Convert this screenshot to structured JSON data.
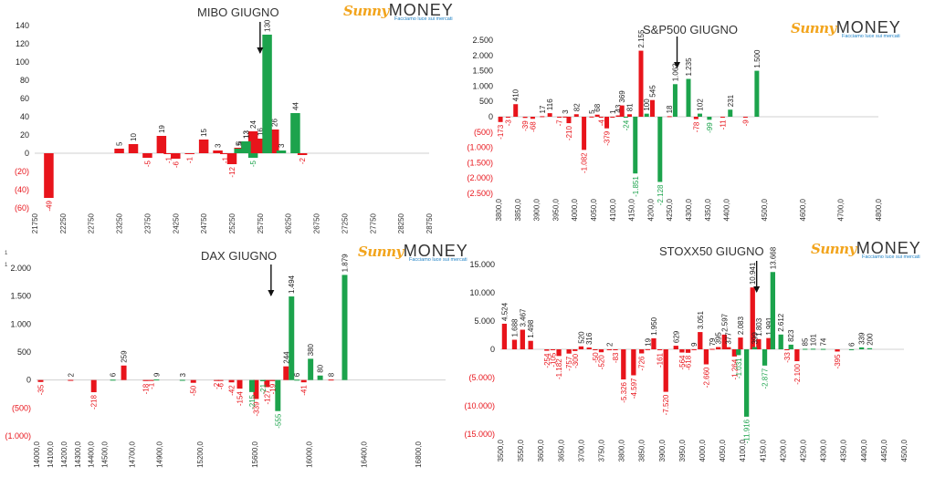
{
  "logo": {
    "word1": "Sunny",
    "word2": "MONEY",
    "tagline": "Facciamo luce sui mercati"
  },
  "stray_marks": [
    "1",
    "1"
  ],
  "charts": [
    {
      "type": "bar",
      "title": "MIBO GIUGNO",
      "xlabel": "",
      "ylabel": "",
      "ylim": [
        -60,
        140
      ],
      "yticks": [
        140,
        120,
        100,
        80,
        60,
        40,
        20,
        0,
        -20,
        -40,
        -60
      ],
      "ytick_labels": [
        "140",
        "120",
        "100",
        "80",
        "60",
        "40",
        "20",
        "0",
        "(20)",
        "(40)",
        "(60)"
      ],
      "xlim": [
        21750,
        28750
      ],
      "xticks": [
        21750,
        22250,
        22750,
        23250,
        23750,
        24250,
        24750,
        25250,
        25750,
        26250,
        26750,
        27250,
        27750,
        28250,
        28750
      ],
      "xtick_labels": [
        "21750",
        "22250",
        "22750",
        "23250",
        "23750",
        "24250",
        "24750",
        "25250",
        "25750",
        "26250",
        "26750",
        "27250",
        "27750",
        "28250",
        "28750"
      ],
      "bar_width": 170,
      "colors": {
        "positive": "#e8141b",
        "negative": "#1ca34c"
      },
      "arrow_at": 25750,
      "red_series": [
        {
          "x": 22000,
          "value": -49,
          "label": "-49"
        },
        {
          "x": 23250,
          "value": 5,
          "label": "5"
        },
        {
          "x": 23500,
          "value": 10,
          "label": "10"
        },
        {
          "x": 23750,
          "value": -5,
          "label": "-5"
        },
        {
          "x": 24000,
          "value": 19,
          "label": "19"
        },
        {
          "x": 24125,
          "value": -1,
          "label": "-1"
        },
        {
          "x": 24250,
          "value": -6,
          "label": "-6"
        },
        {
          "x": 24500,
          "value": -1,
          "label": "-1"
        },
        {
          "x": 24750,
          "value": 15,
          "label": "15"
        },
        {
          "x": 25000,
          "value": 3,
          "label": "3"
        },
        {
          "x": 25125,
          "value": -1,
          "label": "-1"
        },
        {
          "x": 25250,
          "value": -12,
          "label": "-12"
        },
        {
          "x": 25375,
          "value": 6,
          "label": "6"
        },
        {
          "x": 25500,
          "value": 13,
          "label": "13"
        },
        {
          "x": 25625,
          "value": 24,
          "label": "24"
        },
        {
          "x": 25750,
          "value": 16,
          "label": "16"
        },
        {
          "x": 26000,
          "value": 26,
          "label": "26"
        },
        {
          "x": 26500,
          "value": -2,
          "label": "-2"
        }
      ],
      "green_series": [
        {
          "x": 25375,
          "value": 5,
          "label": "5"
        },
        {
          "x": 25500,
          "value": 13,
          "label": "13"
        },
        {
          "x": 25625,
          "value": -5,
          "label": "-5"
        },
        {
          "x": 25875,
          "value": 130,
          "label": "130"
        },
        {
          "x": 26125,
          "value": 3,
          "label": "3"
        },
        {
          "x": 26375,
          "value": 44,
          "label": "44"
        }
      ]
    },
    {
      "type": "bar",
      "title": "S&P500 GIUGNO",
      "xlabel": "",
      "ylabel": "",
      "ylim": [
        -2500,
        2500
      ],
      "yticks": [
        2500,
        2000,
        1500,
        1000,
        500,
        0,
        -500,
        -1000,
        -1500,
        -2000,
        -2500
      ],
      "ytick_labels": [
        "2.500",
        "2.000",
        "1.500",
        "1.000",
        "500",
        "0",
        "(500)",
        "(1.000)",
        "(1.500)",
        "(2.000)",
        "(2.500)"
      ],
      "xlim": [
        3800,
        4800
      ],
      "xticks": [
        3800,
        3850,
        3900,
        3950,
        4000,
        4050,
        4100,
        4150,
        4200,
        4250,
        4300,
        4350,
        4400,
        4500,
        4600,
        4700,
        4800
      ],
      "xtick_labels": [
        "3800,0",
        "3850,0",
        "3900,0",
        "3950,0",
        "4000,0",
        "4050,0",
        "4100,0",
        "4150,0",
        "4200,0",
        "4250,0",
        "4300,0",
        "4350,0",
        "4400,0",
        "4500,0",
        "4600,0",
        "4700,0",
        "4800,0"
      ],
      "bar_width": 12,
      "colors": {
        "positive": "#e8141b",
        "negative": "#1ca34c"
      },
      "arrow_at": 4270,
      "red_series": [
        {
          "x": 3805,
          "value": -173,
          "label": "-173"
        },
        {
          "x": 3825,
          "value": -3,
          "label": "-3"
        },
        {
          "x": 3845,
          "value": 410,
          "label": "410"
        },
        {
          "x": 3870,
          "value": -39,
          "label": "-39"
        },
        {
          "x": 3890,
          "value": -68,
          "label": "-68"
        },
        {
          "x": 3915,
          "value": 17,
          "label": "17"
        },
        {
          "x": 3935,
          "value": 116,
          "label": "116"
        },
        {
          "x": 3960,
          "value": -7,
          "label": "-7"
        },
        {
          "x": 3975,
          "value": 3,
          "label": "3"
        },
        {
          "x": 3985,
          "value": -210,
          "label": "-210"
        },
        {
          "x": 4005,
          "value": 82,
          "label": "82"
        },
        {
          "x": 4025,
          "value": -1082,
          "label": "-1.082"
        },
        {
          "x": 4045,
          "value": 5,
          "label": "5"
        },
        {
          "x": 4060,
          "value": 68,
          "label": "68"
        },
        {
          "x": 4070,
          "value": -4,
          "label": "-4"
        },
        {
          "x": 4085,
          "value": -379,
          "label": "-379"
        },
        {
          "x": 4100,
          "value": 1,
          "label": "1"
        },
        {
          "x": 4115,
          "value": 43,
          "label": "43"
        },
        {
          "x": 4125,
          "value": 369,
          "label": "369"
        },
        {
          "x": 4145,
          "value": 81,
          "label": "81"
        },
        {
          "x": 4175,
          "value": 2155,
          "label": "2.155"
        },
        {
          "x": 4205,
          "value": 545,
          "label": "545"
        },
        {
          "x": 4250,
          "value": 18,
          "label": "18"
        },
        {
          "x": 4320,
          "value": -78,
          "label": "-78"
        },
        {
          "x": 4390,
          "value": -11,
          "label": "-11"
        },
        {
          "x": 4450,
          "value": -9,
          "label": "-9"
        }
      ],
      "green_series": [
        {
          "x": 4135,
          "value": -24,
          "label": "-24"
        },
        {
          "x": 4160,
          "value": -1851,
          "label": "-1.851"
        },
        {
          "x": 4190,
          "value": 100,
          "label": "100"
        },
        {
          "x": 4225,
          "value": -2128,
          "label": "-2.128"
        },
        {
          "x": 4265,
          "value": 1063,
          "label": "1.063"
        },
        {
          "x": 4300,
          "value": 1235,
          "label": "1.235"
        },
        {
          "x": 4330,
          "value": 102,
          "label": "102"
        },
        {
          "x": 4355,
          "value": -99,
          "label": "-99"
        },
        {
          "x": 4410,
          "value": 231,
          "label": "231"
        },
        {
          "x": 4480,
          "value": 1500,
          "label": "1.500"
        }
      ]
    },
    {
      "type": "bar",
      "title": "DAX GIUGNO",
      "xlabel": "",
      "ylabel": "",
      "ylim": [
        -1000,
        2000
      ],
      "yticks": [
        2000,
        1500,
        1000,
        500,
        0,
        -500,
        -1000
      ],
      "ytick_labels": [
        "2.000",
        "1.500",
        "1.000",
        "500",
        "0",
        "(500)",
        "(1.000)"
      ],
      "xlim": [
        14000,
        17000
      ],
      "xticks": [
        14000,
        14100,
        14200,
        14300,
        14400,
        14500,
        14700,
        14900,
        15200,
        15600,
        16000,
        16400,
        16800
      ],
      "xtick_labels": [
        "14000,0",
        "14100,0",
        "14200,0",
        "14300,0",
        "14400,0",
        "14500,0",
        "14700,0",
        "14900,0",
        "15200,0",
        "15600,0",
        "16000,0",
        "16400,0",
        "16800,0"
      ],
      "bar_width": 40,
      "colors": {
        "positive": "#e8141b",
        "negative": "#1ca34c"
      },
      "arrow_at": 15720,
      "red_series": [
        {
          "x": 14030,
          "value": -35,
          "label": "-35"
        },
        {
          "x": 14250,
          "value": 2,
          "label": "2"
        },
        {
          "x": 14420,
          "value": -218,
          "label": "-218"
        },
        {
          "x": 14640,
          "value": 259,
          "label": "259"
        },
        {
          "x": 14800,
          "value": -18,
          "label": "-18"
        },
        {
          "x": 14840,
          "value": -1,
          "label": "-1"
        },
        {
          "x": 15150,
          "value": -50,
          "label": "-50"
        },
        {
          "x": 15320,
          "value": -2,
          "label": "-2"
        },
        {
          "x": 15350,
          "value": -6,
          "label": "-6"
        },
        {
          "x": 15430,
          "value": -42,
          "label": "-42"
        },
        {
          "x": 15490,
          "value": -154,
          "label": "-154"
        },
        {
          "x": 15610,
          "value": -339,
          "label": "-339"
        },
        {
          "x": 15690,
          "value": -127,
          "label": "-127"
        },
        {
          "x": 15730,
          "value": -19,
          "label": "-19"
        },
        {
          "x": 15830,
          "value": 244,
          "label": "244"
        },
        {
          "x": 15960,
          "value": -41,
          "label": "-41"
        },
        {
          "x": 16160,
          "value": 8,
          "label": "8"
        }
      ],
      "green_series": [
        {
          "x": 14560,
          "value": 6,
          "label": "6"
        },
        {
          "x": 14880,
          "value": 9,
          "label": "9"
        },
        {
          "x": 15070,
          "value": 3,
          "label": "3"
        },
        {
          "x": 15580,
          "value": -215,
          "label": "-215"
        },
        {
          "x": 15660,
          "value": -21,
          "label": "-21"
        },
        {
          "x": 15770,
          "value": -555,
          "label": "-555"
        },
        {
          "x": 15870,
          "value": 1494,
          "label": "1.494"
        },
        {
          "x": 15910,
          "value": 6,
          "label": "6"
        },
        {
          "x": 16010,
          "value": 380,
          "label": "380"
        },
        {
          "x": 16080,
          "value": 80,
          "label": "80"
        },
        {
          "x": 16260,
          "value": 1879,
          "label": "1.879"
        }
      ]
    },
    {
      "type": "bar",
      "title": "STOXX50 GIUGNO",
      "xlabel": "",
      "ylabel": "",
      "ylim": [
        -15000,
        15000
      ],
      "yticks": [
        15000,
        10000,
        5000,
        0,
        -5000,
        -10000,
        -15000
      ],
      "ytick_labels": [
        "15.000",
        "10.000",
        "5.000",
        "0",
        "(5.000)",
        "(10.000)",
        "(15.000)"
      ],
      "xlim": [
        3500,
        4500
      ],
      "xticks": [
        3500,
        3550,
        3600,
        3650,
        3700,
        3750,
        3800,
        3850,
        3900,
        3950,
        4000,
        4050,
        4100,
        4150,
        4200,
        4250,
        4300,
        4350,
        4400,
        4450,
        4500
      ],
      "xtick_labels": [
        "3500,0",
        "3550,0",
        "3600,0",
        "3650,0",
        "3700,0",
        "3750,0",
        "3800,0",
        "3850,0",
        "3900,0",
        "3950,0",
        "4000,0",
        "4050,0",
        "4100,0",
        "4150,0",
        "4200,0",
        "4250,0",
        "4300,0",
        "4350,0",
        "4400,0",
        "4450,0",
        "4500,0"
      ],
      "bar_width": 12,
      "colors": {
        "positive": "#e8141b",
        "negative": "#1ca34c"
      },
      "arrow_at": 4135,
      "red_series": [
        {
          "x": 3510,
          "value": 4524,
          "label": "4.524"
        },
        {
          "x": 3535,
          "value": 1688,
          "label": "1.688"
        },
        {
          "x": 3555,
          "value": 3467,
          "label": "3.467"
        },
        {
          "x": 3575,
          "value": 1498,
          "label": "1.498"
        },
        {
          "x": 3615,
          "value": -254,
          "label": "-254"
        },
        {
          "x": 3630,
          "value": -105,
          "label": "-105"
        },
        {
          "x": 3645,
          "value": -1182,
          "label": "-1.182"
        },
        {
          "x": 3670,
          "value": -757,
          "label": "-757"
        },
        {
          "x": 3685,
          "value": -300,
          "label": "-300"
        },
        {
          "x": 3700,
          "value": 520,
          "label": "520"
        },
        {
          "x": 3720,
          "value": 316,
          "label": "316"
        },
        {
          "x": 3735,
          "value": -50,
          "label": "-50"
        },
        {
          "x": 3750,
          "value": -520,
          "label": "-520"
        },
        {
          "x": 3770,
          "value": 2,
          "label": "2"
        },
        {
          "x": 3785,
          "value": -83,
          "label": "-83"
        },
        {
          "x": 3805,
          "value": -5326,
          "label": "-5.326"
        },
        {
          "x": 3830,
          "value": -4597,
          "label": "-4.597"
        },
        {
          "x": 3850,
          "value": -726,
          "label": "-726"
        },
        {
          "x": 3865,
          "value": 19,
          "label": "19"
        },
        {
          "x": 3880,
          "value": 1950,
          "label": "1.950"
        },
        {
          "x": 3895,
          "value": -161,
          "label": "-161"
        },
        {
          "x": 3910,
          "value": -7520,
          "label": "-7.520"
        },
        {
          "x": 3935,
          "value": 629,
          "label": "629"
        },
        {
          "x": 3950,
          "value": -564,
          "label": "-564"
        },
        {
          "x": 3965,
          "value": -618,
          "label": "-618"
        },
        {
          "x": 3980,
          "value": 9,
          "label": "9"
        },
        {
          "x": 3995,
          "value": 3051,
          "label": "3.051"
        },
        {
          "x": 4010,
          "value": -2660,
          "label": "-2.660"
        },
        {
          "x": 4025,
          "value": 79,
          "label": "79"
        },
        {
          "x": 4040,
          "value": 395,
          "label": "395"
        },
        {
          "x": 4055,
          "value": 2597,
          "label": "2.597"
        },
        {
          "x": 4065,
          "value": 377,
          "label": "377"
        },
        {
          "x": 4080,
          "value": -1264,
          "label": "-1.264"
        },
        {
          "x": 4095,
          "value": 2083,
          "label": "2.083"
        },
        {
          "x": 4125,
          "value": 10941,
          "label": "10.941"
        },
        {
          "x": 4140,
          "value": 1803,
          "label": "1.803"
        },
        {
          "x": 4165,
          "value": 1991,
          "label": "1.991"
        },
        {
          "x": 4210,
          "value": -33,
          "label": "-33"
        },
        {
          "x": 4235,
          "value": -2100,
          "label": "-2.100"
        },
        {
          "x": 4335,
          "value": -395,
          "label": "-395"
        }
      ],
      "green_series": [
        {
          "x": 4090,
          "value": -1031,
          "label": "-1.031"
        },
        {
          "x": 4110,
          "value": -11916,
          "label": "-11.916"
        },
        {
          "x": 4130,
          "value": 399,
          "label": "399"
        },
        {
          "x": 4155,
          "value": -2877,
          "label": "-2.877"
        },
        {
          "x": 4175,
          "value": 13668,
          "label": "13.668"
        },
        {
          "x": 4195,
          "value": 2612,
          "label": "2.612"
        },
        {
          "x": 4220,
          "value": 823,
          "label": "823"
        },
        {
          "x": 4255,
          "value": 85,
          "label": "85"
        },
        {
          "x": 4275,
          "value": 101,
          "label": "101"
        },
        {
          "x": 4300,
          "value": 74,
          "label": "74"
        },
        {
          "x": 4370,
          "value": 6,
          "label": "6"
        },
        {
          "x": 4395,
          "value": 339,
          "label": "339"
        },
        {
          "x": 4415,
          "value": 200,
          "label": "200"
        }
      ]
    }
  ]
}
